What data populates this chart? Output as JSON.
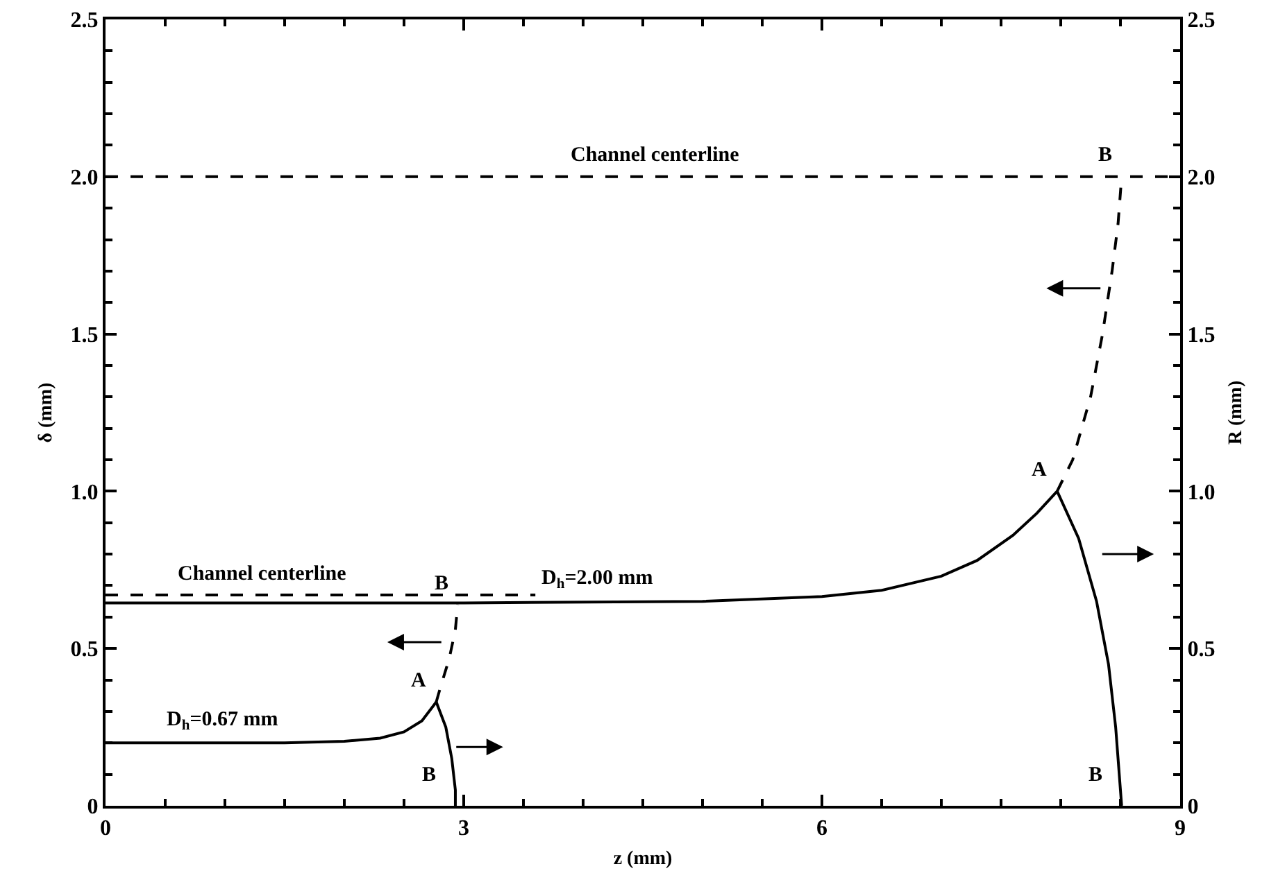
{
  "chart_data": {
    "type": "line",
    "xlabel": "z (mm)",
    "ylabel": "δ (mm)",
    "y2label": "R (mm)",
    "xlim": [
      0,
      9
    ],
    "xticks": [
      0,
      3,
      6,
      9
    ],
    "ylim": [
      0,
      2.5
    ],
    "yticks": [
      0,
      0.5,
      {
        "value": 1,
        "label": "1.0"
      },
      1.5,
      {
        "value": 2,
        "label": "2.0"
      },
      2.5
    ],
    "y2lim": [
      0,
      2.5
    ],
    "y2ticks": [
      0,
      0.5,
      {
        "value": 1,
        "label": "1.0"
      },
      1.5,
      {
        "value": 2,
        "label": "2.0"
      },
      2.5
    ],
    "grid": false,
    "marker": "none",
    "series": [
      {
        "color": "#000000",
        "line_style": "dashed",
        "x": [
          0,
          9
        ],
        "values": [
          2.0,
          2.0
        ]
      },
      {
        "color": "#000000",
        "line_style": "dashed",
        "x": [
          0,
          3.6
        ],
        "values": [
          0.67,
          0.67
        ]
      },
      {
        "color": "#000000",
        "line_style": "solid",
        "x": [
          0,
          1,
          1.5,
          2,
          2.3,
          2.5,
          2.65,
          2.77
        ],
        "values": [
          0.2,
          0.2,
          0.2,
          0.205,
          0.215,
          0.235,
          0.27,
          0.33
        ]
      },
      {
        "color": "#000000",
        "line_style": "dashed",
        "x": [
          2.77,
          2.8,
          2.88,
          2.93,
          2.95
        ],
        "values": [
          0.33,
          0.37,
          0.47,
          0.56,
          0.64
        ]
      },
      {
        "color": "#000000",
        "line_style": "solid",
        "axis": "y2",
        "x": [
          2.77,
          2.85,
          2.9,
          2.93,
          2.93
        ],
        "values": [
          0.33,
          0.25,
          0.15,
          0.05,
          0
        ]
      },
      {
        "color": "#000000",
        "line_style": "solid",
        "x": [
          0,
          3,
          5,
          6,
          6.5,
          7,
          7.3,
          7.6,
          7.8,
          7.97
        ],
        "values": [
          0.645,
          0.645,
          0.65,
          0.665,
          0.685,
          0.73,
          0.78,
          0.86,
          0.93,
          1.0
        ]
      },
      {
        "color": "#000000",
        "line_style": "dashed",
        "x": [
          7.97,
          8.1,
          8.25,
          8.35,
          8.43,
          8.48,
          8.51
        ],
        "values": [
          1.0,
          1.1,
          1.3,
          1.5,
          1.7,
          1.85,
          2.0
        ]
      },
      {
        "color": "#000000",
        "line_style": "solid",
        "axis": "y2",
        "x": [
          7.97,
          8.15,
          8.3,
          8.4,
          8.46,
          8.49,
          8.51
        ],
        "values": [
          1.0,
          0.85,
          0.65,
          0.45,
          0.25,
          0.1,
          0
        ]
      }
    ],
    "annotations": [
      {
        "text": "Channel centerline",
        "x": 5.4,
        "y": 2.0
      },
      {
        "text": "Channel centerline",
        "x": 2.1,
        "y": 0.67
      },
      {
        "text": "D$_{h}$=2.00 mm",
        "x": 4.67,
        "y": 0.648
      },
      {
        "text": "D$_{h}$=0.67 mm",
        "x": 1.53,
        "y": 0.2
      },
      {
        "text": "A",
        "x": 2.77,
        "y": 0.33
      },
      {
        "text": "B",
        "x": 2.95,
        "y": 0.64
      },
      {
        "text": "B",
        "x": 2.93,
        "y": 0
      },
      {
        "text": "A",
        "x": 7.97,
        "y": 1.0
      },
      {
        "text": "B",
        "x": 8.51,
        "y": 2.0
      },
      {
        "text": "B",
        "x": 8.51,
        "y": 0
      }
    ]
  }
}
